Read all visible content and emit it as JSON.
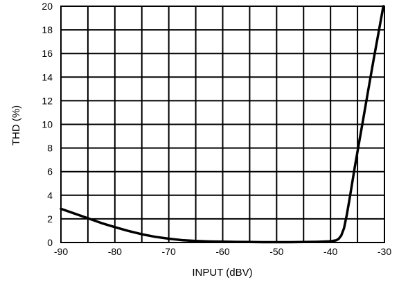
{
  "chart_data": {
    "type": "line",
    "title": "",
    "xlabel": "INPUT (dBV)",
    "ylabel": "THD (%)",
    "xlim": [
      -90,
      -30
    ],
    "ylim": [
      0,
      20
    ],
    "x_ticks": [
      -90,
      -85,
      -80,
      -75,
      -70,
      -65,
      -60,
      -55,
      -50,
      -45,
      -40,
      -35,
      -30
    ],
    "x_tick_labels": [
      "-90",
      "-80",
      "-70",
      "-60",
      "-50",
      "-40",
      "-30"
    ],
    "x_tick_label_values": [
      -90,
      -80,
      -70,
      -60,
      -50,
      -40,
      -30
    ],
    "y_ticks": [
      0,
      2,
      4,
      6,
      8,
      10,
      12,
      14,
      16,
      18,
      20
    ],
    "y_tick_labels": [
      "0",
      "2",
      "4",
      "6",
      "8",
      "10",
      "12",
      "14",
      "16",
      "18",
      "20"
    ],
    "grid": true,
    "legend": "none",
    "series": [
      {
        "color": "#000000",
        "x": [
          -90,
          -87.5,
          -85,
          -82.5,
          -80,
          -77.5,
          -75,
          -72.5,
          -70,
          -67.5,
          -65,
          -62.5,
          -60,
          -57.5,
          -55,
          -52.5,
          -50,
          -47.5,
          -45,
          -42.5,
          -40,
          -39,
          -38.5,
          -38,
          -37.5,
          -37,
          -36.5,
          -36,
          -35.5,
          -35,
          -34,
          -33,
          -32,
          -31,
          -30.2
        ],
        "y": [
          2.85,
          2.45,
          2.05,
          1.65,
          1.3,
          0.98,
          0.7,
          0.48,
          0.32,
          0.2,
          0.13,
          0.09,
          0.07,
          0.05,
          0.04,
          0.03,
          0.03,
          0.03,
          0.04,
          0.06,
          0.1,
          0.18,
          0.3,
          0.6,
          1.2,
          2.3,
          3.6,
          5.0,
          6.4,
          7.7,
          10.3,
          12.9,
          15.5,
          18.0,
          20.0
        ]
      }
    ]
  }
}
